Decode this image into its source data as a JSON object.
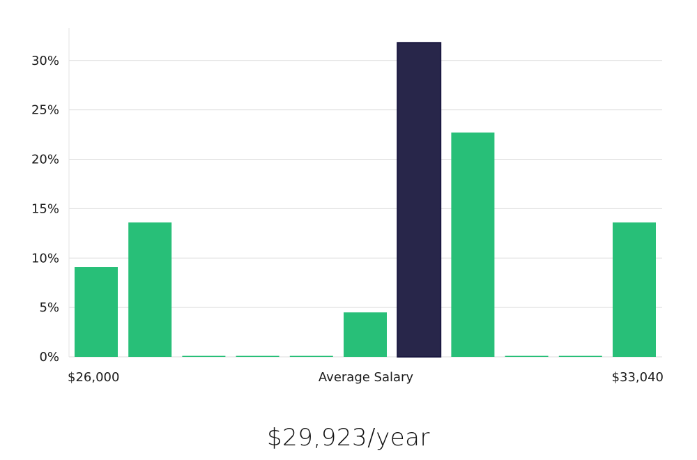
{
  "chart_data": {
    "type": "bar",
    "categories": [
      "1",
      "2",
      "3",
      "4",
      "5",
      "6",
      "7",
      "8",
      "9",
      "10",
      "11"
    ],
    "values": [
      9.1,
      13.6,
      0.1,
      0.1,
      0.1,
      4.5,
      31.8,
      22.7,
      0.1,
      0.1,
      13.6
    ],
    "highlight_index": 6,
    "colors": {
      "bar": "#28bf78",
      "highlight": "#28264a"
    },
    "ylim": [
      0,
      33.3
    ],
    "y_ticks": [
      0,
      5,
      10,
      15,
      20,
      25,
      30
    ],
    "y_tick_labels": [
      "0%",
      "5%",
      "10%",
      "15%",
      "20%",
      "25%",
      "30%"
    ],
    "x_labels": {
      "left": "$26,000",
      "center": "Average Salary",
      "right": "$33,040"
    },
    "grid": true
  },
  "caption": "$29,923/year"
}
